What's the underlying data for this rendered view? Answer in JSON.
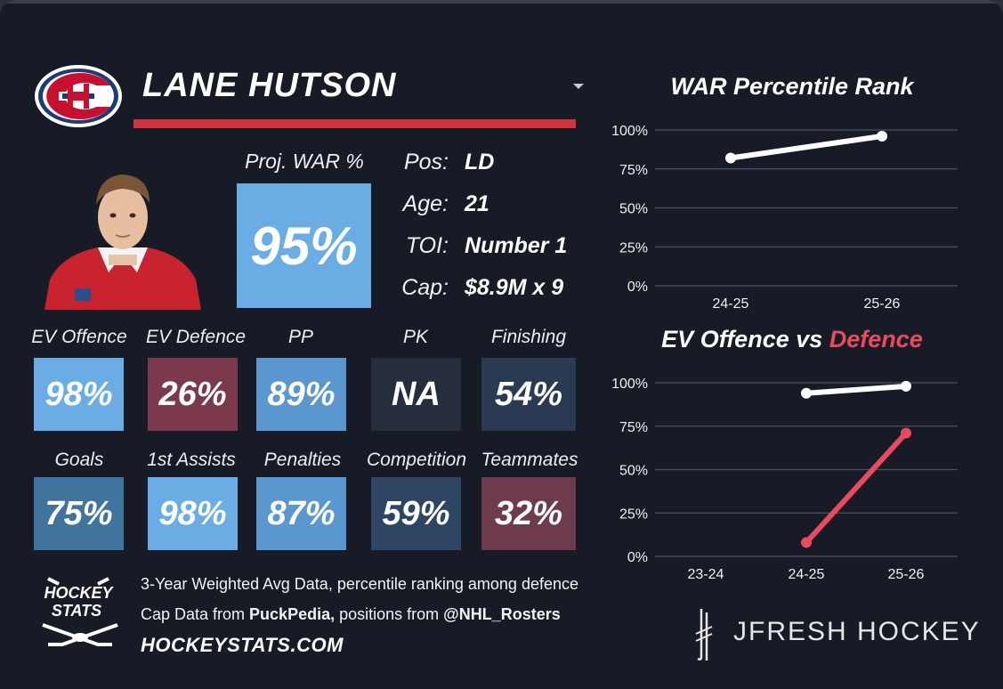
{
  "player": {
    "name": "LANE HUTSON",
    "team_logo_icon": "canadiens-logo-icon",
    "proj_war_label": "Proj. WAR %",
    "proj_war_value": "95%",
    "proj_war_color": "#6aade5"
  },
  "info": [
    {
      "label": "Pos:",
      "value": "LD"
    },
    {
      "label": "Age:",
      "value": "21"
    },
    {
      "label": "TOI:",
      "value": "Number 1"
    },
    {
      "label": "Cap:",
      "value": "$8.9M x 9"
    }
  ],
  "stats_row1": [
    {
      "label": "EV Offence",
      "value": "98%",
      "color": "#6aade5"
    },
    {
      "label": "EV Defence",
      "value": "26%",
      "color": "#7b3a4c"
    },
    {
      "label": "PP",
      "value": "89%",
      "color": "#5a97cf"
    },
    {
      "label": "PK",
      "value": "NA",
      "color": "#262e3e"
    },
    {
      "label": "Finishing",
      "value": "54%",
      "color": "#2a3a52"
    }
  ],
  "stats_row2": [
    {
      "label": "Goals",
      "value": "75%",
      "color": "#41739f"
    },
    {
      "label": "1st Assists",
      "value": "98%",
      "color": "#6aade5"
    },
    {
      "label": "Penalties",
      "value": "87%",
      "color": "#5a97cf"
    },
    {
      "label": "Competition",
      "value": "59%",
      "color": "#2e4563"
    },
    {
      "label": "Teammates",
      "value": "32%",
      "color": "#6e3b4d"
    }
  ],
  "footer": {
    "logo_text_1": "HOCKEY",
    "logo_text_2": "STATS",
    "line1": "3-Year Weighted Avg Data, percentile ranking among defence",
    "line2_prefix": "Cap Data from ",
    "line2_puck": "PuckPedia,",
    "line2_mid": " positions from ",
    "line2_rosters": "@NHL_Rosters",
    "line3": "HOCKEYSTATS.COM"
  },
  "brand": {
    "text": "JFRESH HOCKEY"
  },
  "chart_data": [
    {
      "type": "line",
      "title": "WAR Percentile Rank",
      "categories": [
        "24-25",
        "25-26"
      ],
      "yticks": [
        "100%",
        "75%",
        "50%",
        "25%",
        "0%"
      ],
      "ylim": [
        0,
        100
      ],
      "series": [
        {
          "values": [
            82,
            96
          ],
          "color": "#ffffff"
        }
      ]
    },
    {
      "type": "line",
      "title_part1": "EV Offence vs ",
      "title_part2": "Defence",
      "title_part2_color": "#ea4a5e",
      "categories": [
        "23-24",
        "24-25",
        "25-26"
      ],
      "yticks": [
        "100%",
        "75%",
        "50%",
        "25%",
        "0%"
      ],
      "ylim": [
        0,
        100
      ],
      "series": [
        {
          "values": [
            null,
            94,
            98
          ],
          "color": "#ffffff"
        },
        {
          "values": [
            null,
            8,
            71
          ],
          "color": "#ea4a5e"
        }
      ]
    }
  ]
}
